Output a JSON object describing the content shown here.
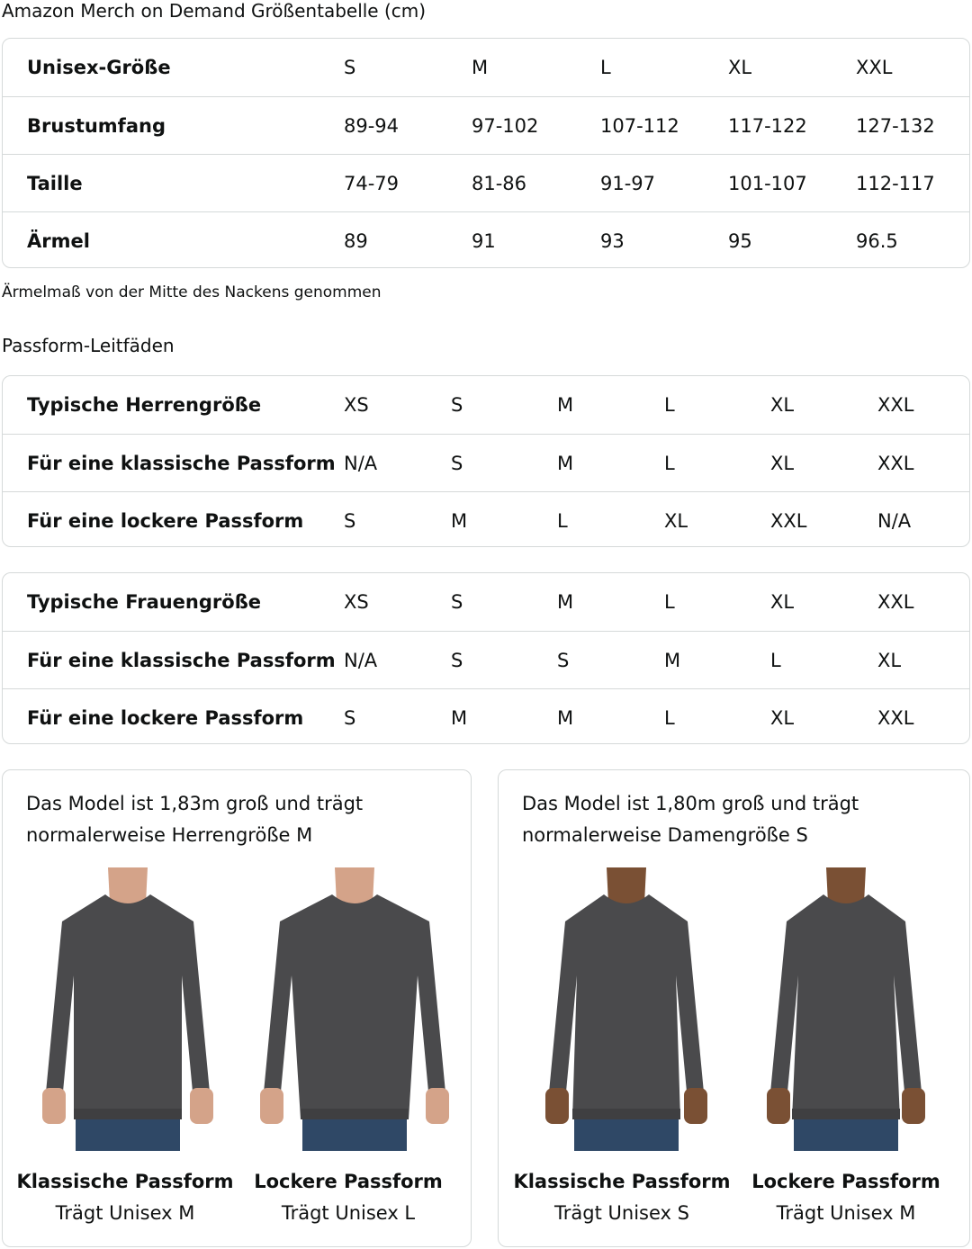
{
  "title": "Amazon Merch on Demand Größentabelle (cm)",
  "size_table": {
    "rows": [
      [
        "Unisex-Größe",
        "S",
        "M",
        "L",
        "XL",
        "XXL"
      ],
      [
        "Brustumfang",
        "89-94",
        "97-102",
        "107-112",
        "117-122",
        "127-132"
      ],
      [
        "Taille",
        "74-79",
        "81-86",
        "91-97",
        "101-107",
        "112-117"
      ],
      [
        "Ärmel",
        "89",
        "91",
        "93",
        "95",
        "96.5"
      ]
    ]
  },
  "note": "Ärmelmaß von der Mitte des Nackens genommen",
  "fit_heading": "Passform-Leitfäden",
  "men_table": {
    "rows": [
      [
        "Typische Herrengröße",
        "XS",
        "S",
        "M",
        "L",
        "XL",
        "XXL"
      ],
      [
        "Für eine klassische Passform",
        "N/A",
        "S",
        "M",
        "L",
        "XL",
        "XXL"
      ],
      [
        "Für eine lockere Passform",
        "S",
        "M",
        "L",
        "XL",
        "XXL",
        "N/A"
      ]
    ]
  },
  "women_table": {
    "rows": [
      [
        "Typische Frauengröße",
        "XS",
        "S",
        "M",
        "L",
        "XL",
        "XXL"
      ],
      [
        "Für eine klassische Passform",
        "N/A",
        "S",
        "S",
        "M",
        "L",
        "XL"
      ],
      [
        "Für eine lockere Passform",
        "S",
        "M",
        "M",
        "L",
        "XL",
        "XXL"
      ]
    ]
  },
  "cards": [
    {
      "caption1": "Das Model ist 1,83m groß und trägt",
      "caption2": "normalerweise Herrengröße M",
      "models": [
        {
          "fit": "Klassische Passform",
          "wears": "Trägt Unisex M"
        },
        {
          "fit": "Lockere Passform",
          "wears": "Trägt Unisex L"
        }
      ]
    },
    {
      "caption1": "Das Model ist 1,80m groß und trägt",
      "caption2": "normalerweise Damengröße S",
      "models": [
        {
          "fit": "Klassische Passform",
          "wears": "Trägt Unisex S"
        },
        {
          "fit": "Lockere Passform",
          "wears": "Trägt Unisex M"
        }
      ]
    }
  ],
  "colors": {
    "border": "#d5d9d9",
    "sweatshirt": "#4a4a4c",
    "jeans": "#2f4866"
  }
}
